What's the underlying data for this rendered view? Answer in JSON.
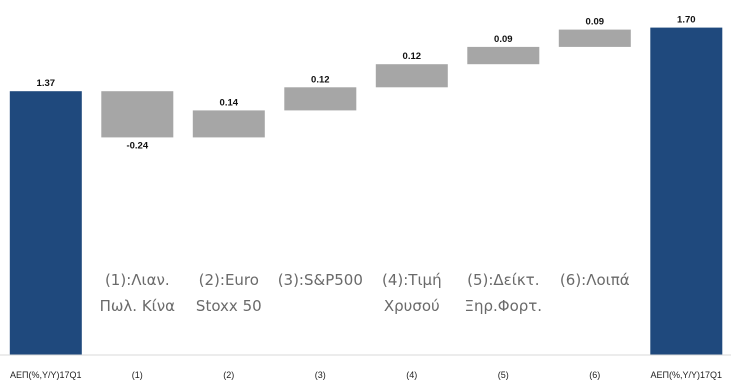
{
  "chart_data": {
    "type": "bar",
    "subtype": "waterfall",
    "title": "",
    "xlabel": "",
    "ylabel": "",
    "ylim": [
      0,
      1.75
    ],
    "grid": false,
    "categories": [
      "ΑΕΠ(%,Υ/Υ)17Q1",
      "(1)",
      "(2)",
      "(3)",
      "(4)",
      "(5)",
      "(6)",
      "ΑΕΠ(%,Υ/Υ)17Q1"
    ],
    "values": [
      1.37,
      -0.24,
      0.14,
      0.12,
      0.12,
      0.09,
      0.09,
      1.7
    ],
    "value_labels": [
      "1.37",
      "-0.24",
      "0.14",
      "0.12",
      "0.12",
      "0.09",
      "0.09",
      "1.70"
    ],
    "bar_kinds": [
      "total",
      "delta",
      "delta",
      "delta",
      "delta",
      "delta",
      "delta",
      "total"
    ],
    "colors": {
      "total": "#1f497d",
      "delta": "#a6a6a6"
    },
    "annotations": [
      {
        "index": 1,
        "lines": [
          "(1):Λιαν.",
          "Πωλ. Κίνα"
        ]
      },
      {
        "index": 2,
        "lines": [
          "(2):Euro",
          "Stoxx 50"
        ]
      },
      {
        "index": 3,
        "lines": [
          "(3):S&P500"
        ]
      },
      {
        "index": 4,
        "lines": [
          "(4):Τιμή",
          "Χρυσού"
        ]
      },
      {
        "index": 5,
        "lines": [
          "(5):Δείκτ.",
          "Ξηρ.Φορτ."
        ]
      },
      {
        "index": 6,
        "lines": [
          "(6):Λοιπά"
        ]
      }
    ]
  }
}
